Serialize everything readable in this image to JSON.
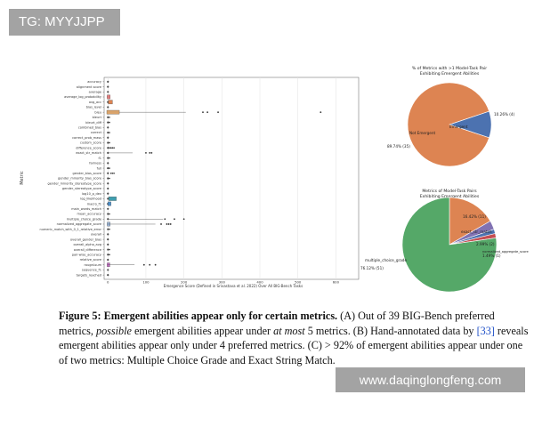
{
  "watermarks": {
    "tag": "TG: MYYJJPP",
    "url": "www.daqinglongfeng.com"
  },
  "figure": {
    "panel_a": {
      "ylabel": "Metric",
      "xlabel": "Emergence Score (Defined in Srivastava et al. 2022) Over All BIG-Bench Tasks",
      "chart_data": {
        "type": "box",
        "categories": [
          "accuracy",
          "alignment score",
          "average",
          "average_log_probability",
          "avg_acc",
          "bias_level",
          "bleu",
          "bleurt",
          "bleurt_diff",
          "combined_bias",
          "correct",
          "correct_prob_mass",
          "custom_score",
          "difference_score",
          "exact_str_match",
          "f1",
          "fairness",
          "full",
          "gender_bias_score",
          "gender_minority_bias_score",
          "gender_minority_stereotype_score",
          "gender_stereotype_score",
          "log10_p_dev",
          "log_likelihood",
          "macro_f1",
          "main_words_match",
          "mean_accuracy",
          "multiple_choice_grade",
          "normalized_aggregate_score",
          "numeric_match_with_0_1_relative_error",
          "overall",
          "overall_gender_bias",
          "overall_alpha_avg",
          "overall_difference",
          "pair-wise_accuracy",
          "relative_score",
          "rougeLsum",
          "sequence_f1",
          "targets_reached"
        ],
        "xticks": [
          "0",
          "100",
          "200",
          "300",
          "400",
          "500",
          "600"
        ],
        "xlim": [
          -10,
          660
        ]
      }
    },
    "panel_b": {
      "title_line1": "% of Metrics with >1 Model-Task Pair",
      "title_line2": "Exhibiting Emergent Abilities",
      "chart_data": {
        "type": "pie",
        "slices": [
          {
            "label": "Emergent",
            "pct_label": "10.26%  (4)",
            "value": 10.26,
            "color": "#4c72b0"
          },
          {
            "label": "Not Emergent",
            "pct_label": "89.74%  (35)",
            "value": 89.74,
            "color": "#dd8452"
          }
        ]
      }
    },
    "panel_c": {
      "title_line1": "Metrics of Model-Task Pairs",
      "title_line2": "Exhibiting Emergent Abilities",
      "chart_data": {
        "type": "pie",
        "slices": [
          {
            "label": "exact_str_match",
            "pct_label": "16.42%  (11)",
            "value": 16.42,
            "color": "#dd8452"
          },
          {
            "label": "",
            "pct_label": "2.99%  (2)",
            "value": 2.99,
            "color": "#8172b3"
          },
          {
            "label": "normalized_aggregate_score",
            "pct_label": "",
            "value": 1.49,
            "color": "#4c72b0"
          },
          {
            "label": "",
            "pct_label": "1.49%  (1)",
            "value": 1.49,
            "color": "#c44e52"
          },
          {
            "label": "multiple_choice_grade",
            "pct_label": "76.12%  (51)",
            "value": 76.12,
            "color": "#55a868"
          }
        ]
      }
    }
  },
  "caption": {
    "fig_label": "Figure 5:",
    "bold_title": "Emergent abilities appear only for certain metrics.",
    "t1": " (A) Out of 39 BIG-Bench preferred metrics, ",
    "t1_ital": "possible",
    "t2": " emergent abilities appear under ",
    "t2_ital": "at most",
    "t3": " 5 metrics. (B) Hand-annotated data by ",
    "ref": "[33]",
    "t4": " reveals emergent abilities appear only under 4 preferred metrics. (C) > 92% of emergent abilities appear under one of two metrics: Multiple Choice Grade and Exact String Match."
  }
}
